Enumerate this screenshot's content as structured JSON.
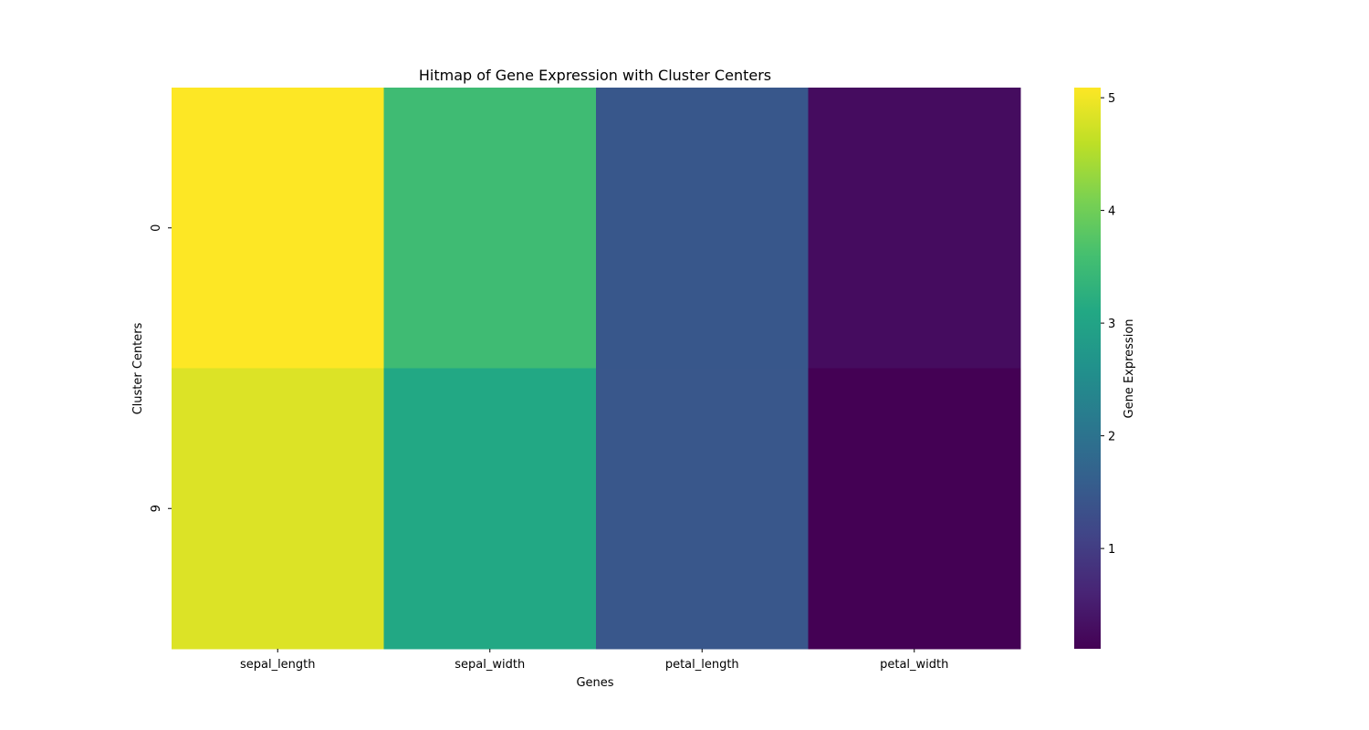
{
  "chart_data": {
    "type": "heatmap",
    "title": "Hitmap of Gene Expression with Cluster Centers",
    "xlabel": "Genes",
    "ylabel": "Cluster Centers",
    "x_categories": [
      "sepal_length",
      "sepal_width",
      "petal_length",
      "petal_width"
    ],
    "y_categories": [
      "0",
      "9"
    ],
    "values": [
      [
        5.09,
        3.52,
        1.46,
        0.27
      ],
      [
        4.83,
        3.09,
        1.45,
        0.11
      ]
    ],
    "colormap": "viridis",
    "colorbar": {
      "label": "Gene Expression",
      "range": [
        0.11,
        5.09
      ],
      "ticks": [
        1,
        2,
        3,
        4,
        5
      ]
    },
    "grid": false
  }
}
